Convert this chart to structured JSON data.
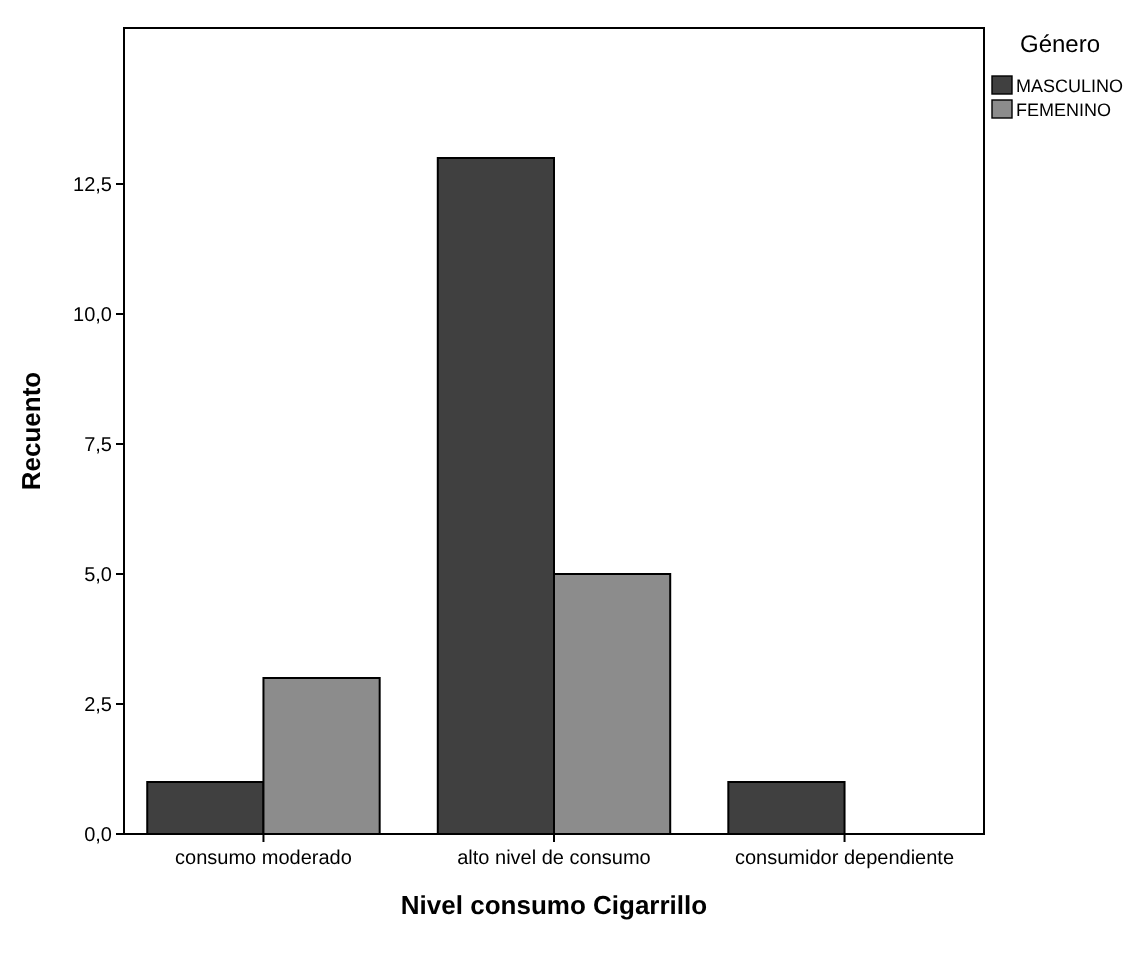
{
  "chart_data": {
    "type": "bar",
    "xlabel": "Nivel consumo Cigarrillo",
    "ylabel": "Recuento",
    "legend_title": "Género",
    "categories": [
      "consumo moderado",
      "alto nivel de consumo",
      "consumidor dependiente"
    ],
    "series": [
      {
        "name": "MASCULINO",
        "color": "#404040",
        "values": [
          1,
          13,
          1
        ]
      },
      {
        "name": "FEMENINO",
        "color": "#8c8c8c",
        "values": [
          3,
          5,
          0
        ]
      }
    ],
    "ylim": [
      0,
      15.5
    ],
    "yticks": [
      {
        "value": 0,
        "label": "0,0"
      },
      {
        "value": 2.5,
        "label": "2,5"
      },
      {
        "value": 5,
        "label": "5,0"
      },
      {
        "value": 7.5,
        "label": "7,5"
      },
      {
        "value": 10,
        "label": "10,0"
      },
      {
        "value": 12.5,
        "label": "12,5"
      }
    ],
    "grid": false,
    "legend": "top right"
  }
}
